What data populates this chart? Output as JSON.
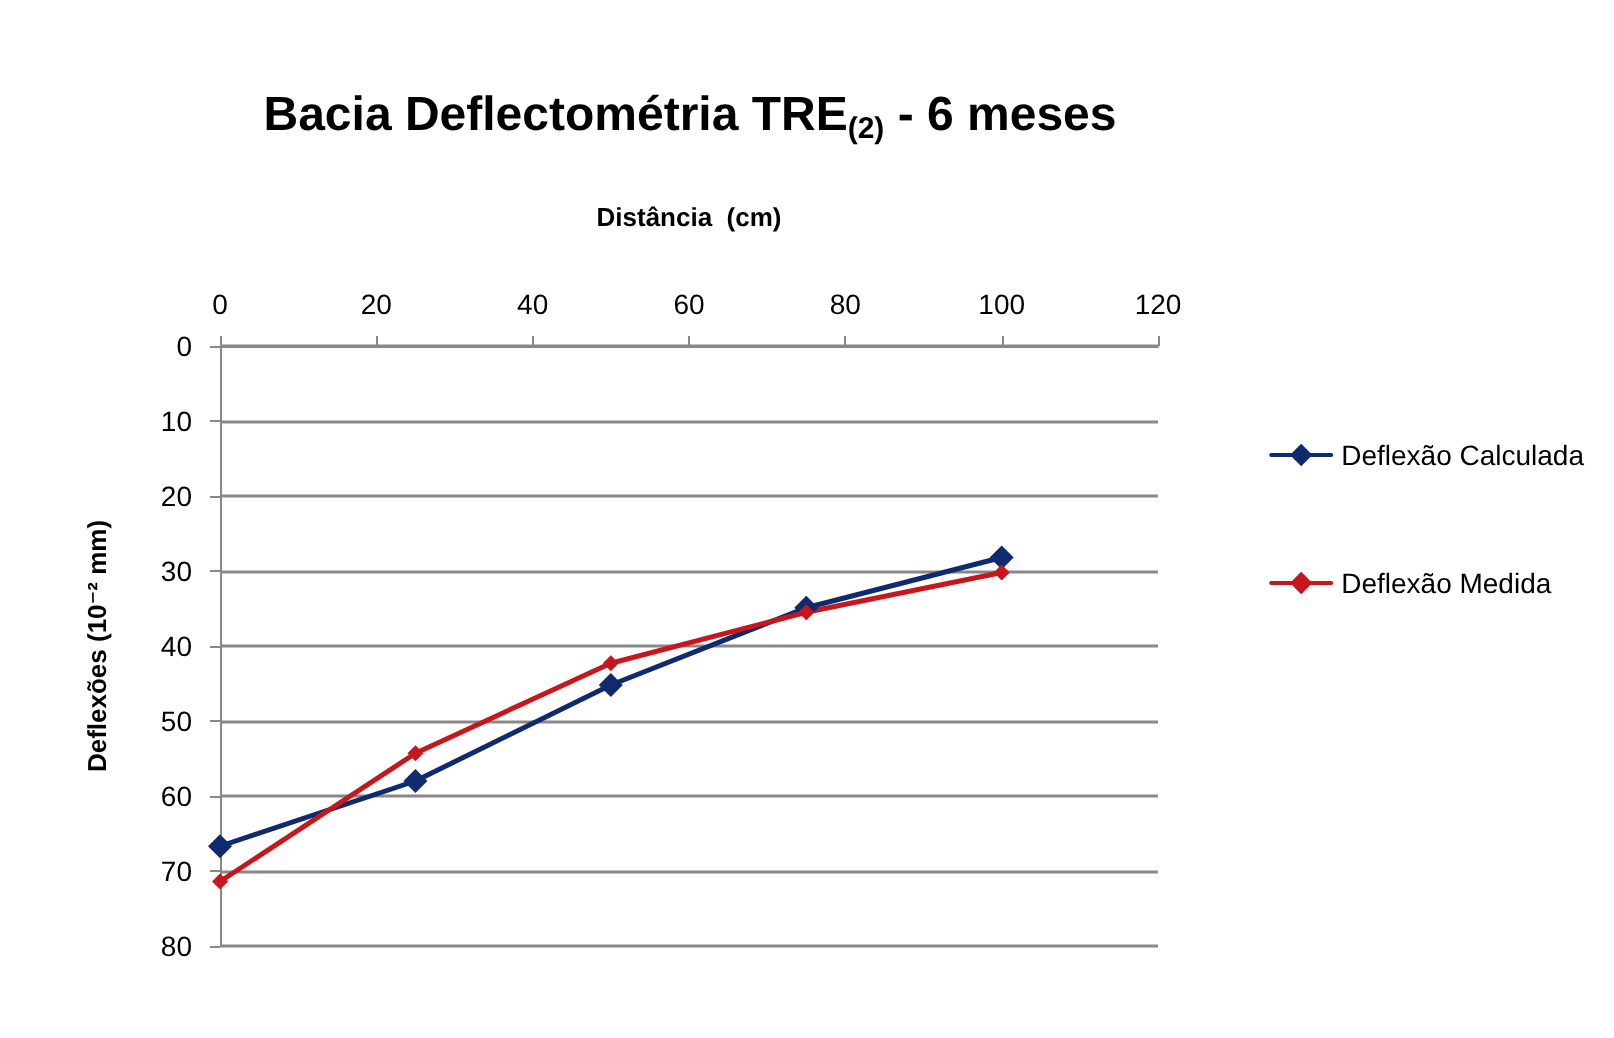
{
  "chart_data": {
    "type": "line",
    "title": "Bacia Deflectométria TRE$_{(2)}$ - 6 meses",
    "xlabel": "Distância  (cm)",
    "ylabel": "Deflexões (10⁻² mm)",
    "x": [
      0,
      25,
      50,
      75,
      100
    ],
    "series": [
      {
        "name": "Deflexão Calculada",
        "color": "#0f2a6e",
        "values": [
          66.7,
          58,
          45.2,
          34.9,
          28.2
        ]
      },
      {
        "name": "Deflexão Medida",
        "color": "#c8161d",
        "values": [
          71.4,
          54.3,
          42.3,
          35.5,
          30.2
        ]
      }
    ],
    "xlim": [
      0,
      120
    ],
    "xticks": [
      0,
      20,
      40,
      60,
      80,
      100,
      120
    ],
    "ylim": [
      80,
      0
    ],
    "yticks": [
      0,
      10,
      20,
      30,
      40,
      50,
      60,
      70,
      80
    ],
    "grid": "y",
    "legend": "right",
    "marker": "diamond",
    "line_style": "solid"
  }
}
